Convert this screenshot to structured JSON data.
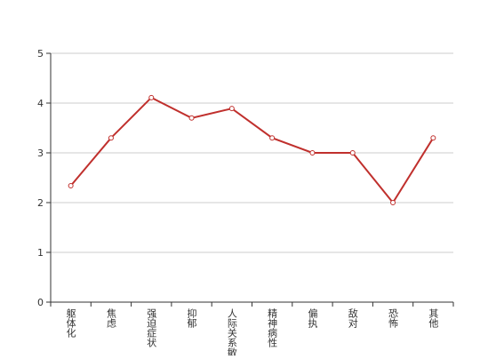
{
  "chart_data": {
    "type": "line",
    "categories": [
      "躯体化",
      "焦虑",
      "强迫症状",
      "抑郁",
      "人际关系敏感",
      "精神病性",
      "偏执",
      "敌对",
      "恐怖",
      "其他"
    ],
    "series": [
      {
        "color": "#c0302d",
        "values": [
          2.34,
          3.3,
          4.11,
          3.7,
          3.89,
          3.3,
          3.0,
          3.0,
          2.0,
          3.3
        ]
      }
    ],
    "ylim": [
      0,
      5
    ],
    "yticks": [
      0,
      1,
      2,
      3,
      4,
      5
    ],
    "grid": true
  }
}
